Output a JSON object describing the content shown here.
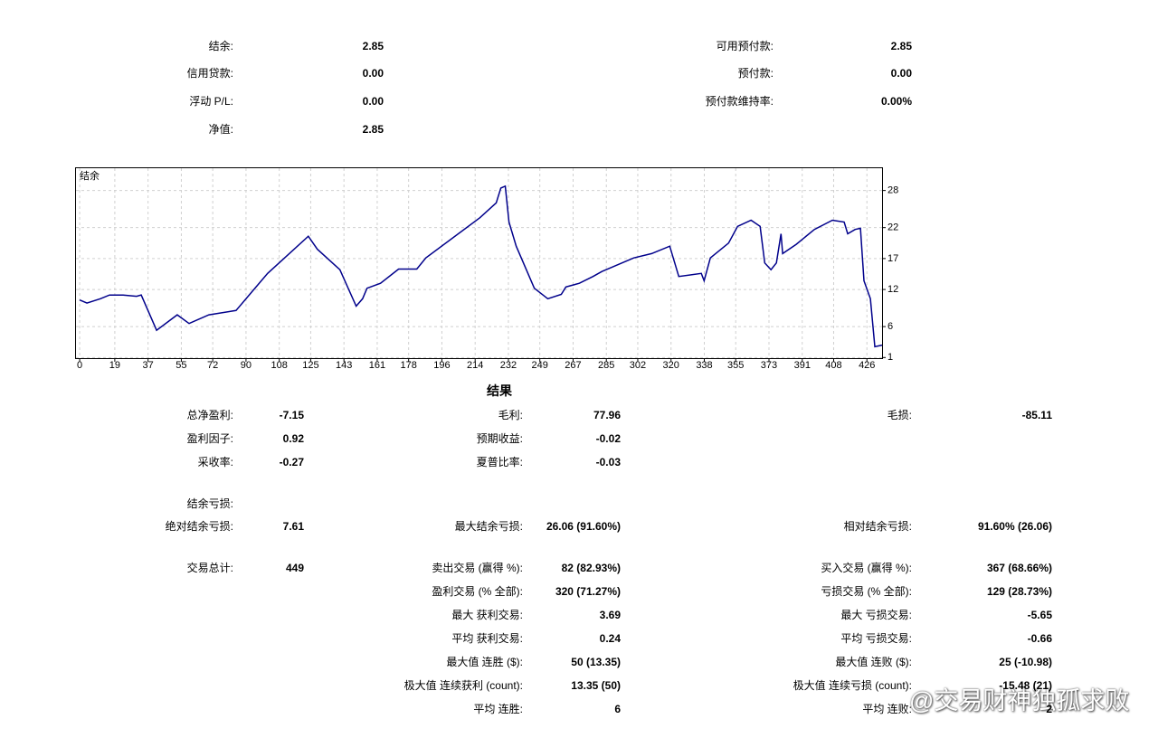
{
  "account": {
    "left": [
      {
        "label": "结余:",
        "value": "2.85"
      },
      {
        "label": "信用贷款:",
        "value": "0.00"
      },
      {
        "label": "浮动 P/L:",
        "value": "0.00"
      },
      {
        "label": "净值:",
        "value": "2.85"
      }
    ],
    "right": [
      {
        "label": "可用预付款:",
        "value": "2.85"
      },
      {
        "label": "预付款:",
        "value": "0.00"
      },
      {
        "label": "预付款维持率:",
        "value": "0.00%"
      }
    ]
  },
  "chart_data": {
    "type": "line",
    "title": "结余",
    "color": "#00008b",
    "grid": true,
    "x": [
      0,
      3.9,
      11.2,
      16.1,
      23.5,
      30.8,
      33.3,
      41.6,
      52.8,
      59.2,
      69.9,
      84.6,
      93.4,
      101.7,
      123.7,
      128.6,
      140.8,
      149.6,
      153.1,
      155.5,
      162.8,
      172.6,
      182.4,
      187.3,
      216.6,
      225.4,
      227.9,
      230.3,
      232.3,
      236.2,
      246.0,
      253.3,
      260.6,
      263.1,
      270.4,
      277.8,
      282.6,
      299.8,
      309.5,
      319.3,
      324.2,
      336.4,
      337.9,
      341.3,
      351.1,
      356.0,
      363.3,
      368.2,
      370.7,
      374.1,
      377.0,
      379.5,
      380.4,
      387.8,
      397.6,
      407.3,
      413.7,
      415.6,
      419.6,
      422.5,
      424.4,
      427.9,
      430.3,
      434.2
    ],
    "values": [
      10.3,
      9.8,
      10.5,
      11.1,
      11.1,
      10.9,
      11.1,
      5.4,
      7.9,
      6.5,
      7.9,
      8.6,
      11.7,
      14.6,
      20.6,
      18.5,
      15.2,
      9.3,
      10.5,
      12.2,
      13.0,
      15.3,
      15.3,
      17.1,
      23.6,
      26.0,
      28.4,
      28.7,
      22.9,
      19.0,
      12.2,
      10.5,
      11.2,
      12.4,
      13.0,
      14.1,
      14.9,
      17.1,
      17.8,
      19.0,
      14.1,
      14.6,
      13.4,
      17.1,
      19.5,
      22.2,
      23.2,
      22.2,
      16.3,
      15.2,
      16.3,
      21.0,
      17.8,
      19.3,
      21.7,
      23.2,
      22.9,
      21.0,
      21.7,
      21.9,
      13.4,
      10.5,
      2.75,
      3.0
    ],
    "xlim": [
      -2,
      434.2
    ],
    "ylim": [
      0.9,
      31.6
    ],
    "xticks": [
      0,
      19,
      37,
      55,
      72,
      90,
      108,
      125,
      143,
      161,
      178,
      196,
      214,
      232,
      249,
      267,
      285,
      302,
      320,
      338,
      355,
      373,
      391,
      408,
      426
    ],
    "yticks": [
      1,
      6,
      12,
      17,
      22,
      28
    ]
  },
  "results": {
    "title": "结果",
    "rows": [
      [
        {
          "label": "总净盈利:",
          "value": "-7.15"
        },
        {
          "label": "毛利:",
          "value": "77.96"
        },
        {
          "label": "毛损:",
          "value": "-85.11"
        }
      ],
      [
        {
          "label": "盈利因子:",
          "value": "0.92"
        },
        {
          "label": "预期收益:",
          "value": "-0.02"
        },
        null
      ],
      [
        {
          "label": "采收率:",
          "value": "-0.27"
        },
        {
          "label": "夏普比率:",
          "value": "-0.03"
        },
        null
      ],
      [
        {
          "label": "结余亏损:"
        },
        null,
        null
      ],
      [
        {
          "label": "绝对结余亏损:",
          "value": "7.61"
        },
        {
          "label": "最大结余亏损:",
          "value": "26.06 (91.60%)"
        },
        {
          "label": "相对结余亏损:",
          "value": "91.60% (26.06)"
        }
      ],
      [
        {
          "label": "交易总计:",
          "value": "449"
        },
        {
          "label": "卖出交易 (赢得 %):",
          "value": "82 (82.93%)"
        },
        {
          "label": "买入交易 (赢得 %):",
          "value": "367 (68.66%)"
        }
      ],
      [
        null,
        {
          "label": "盈利交易 (% 全部):",
          "value": "320 (71.27%)"
        },
        {
          "label": "亏损交易 (% 全部):",
          "value": "129 (28.73%)"
        }
      ],
      [
        null,
        {
          "label": "最大 获利交易:",
          "value": "3.69"
        },
        {
          "label": "最大 亏损交易:",
          "value": "-5.65"
        }
      ],
      [
        null,
        {
          "label": "平均 获利交易:",
          "value": "0.24"
        },
        {
          "label": "平均 亏损交易:",
          "value": "-0.66"
        }
      ],
      [
        null,
        {
          "label": "最大值 连胜 ($):",
          "value": "50 (13.35)"
        },
        {
          "label": "最大值 连败 ($):",
          "value": "25 (-10.98)"
        }
      ],
      [
        null,
        {
          "label": "极大值 连续获利 (count):",
          "value": "13.35 (50)"
        },
        {
          "label": "极大值 连续亏损 (count):",
          "value": "-15.48 (21)"
        }
      ],
      [
        null,
        {
          "label": "平均 连胜:",
          "value": "6"
        },
        {
          "label": "平均 连败:",
          "value": "2"
        }
      ]
    ]
  },
  "watermark": "@交易财神独孤求败"
}
